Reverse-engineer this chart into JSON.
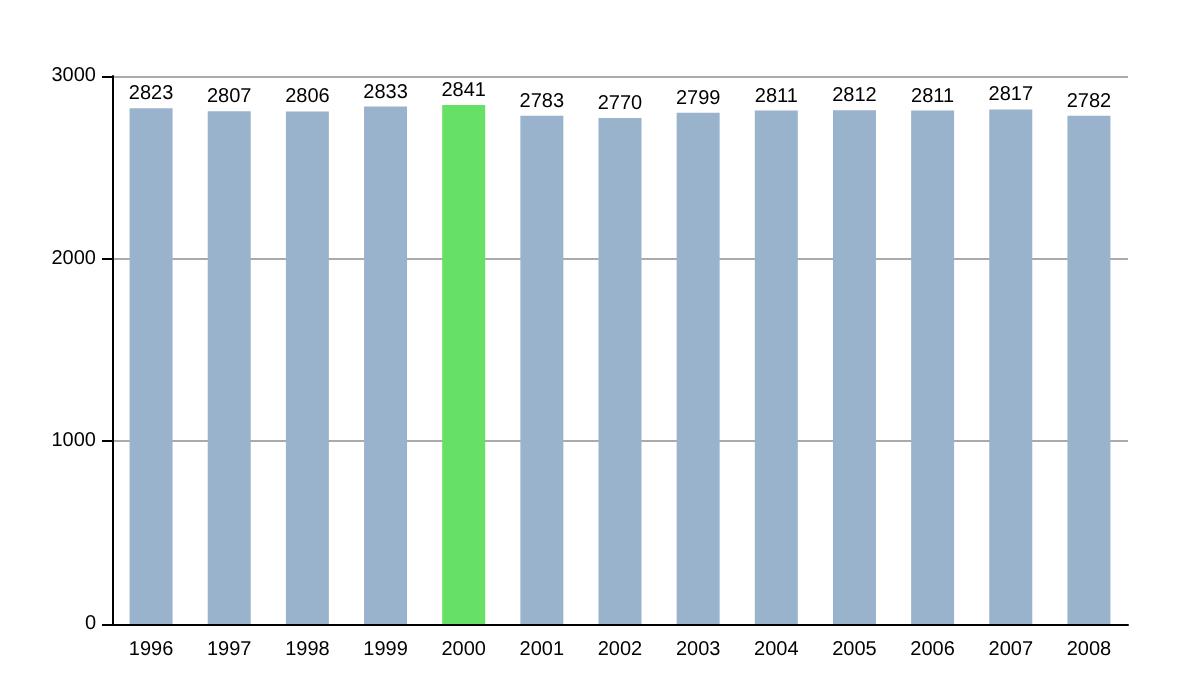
{
  "chart_data": {
    "type": "bar",
    "categories": [
      "1996",
      "1997",
      "1998",
      "1999",
      "2000",
      "2001",
      "2002",
      "2003",
      "2004",
      "2005",
      "2006",
      "2007",
      "2008"
    ],
    "values": [
      2823,
      2807,
      2806,
      2833,
      2841,
      2783,
      2770,
      2799,
      2811,
      2812,
      2811,
      2817,
      2782
    ],
    "colors": [
      "#9ab3cc",
      "#9ab3cc",
      "#9ab3cc",
      "#9ab3cc",
      "#66e066",
      "#9ab3cc",
      "#9ab3cc",
      "#9ab3cc",
      "#9ab3cc",
      "#9ab3cc",
      "#9ab3cc",
      "#9ab3cc",
      "#9ab3cc"
    ],
    "ylim": [
      0,
      3000
    ],
    "yticks": [
      0,
      1000,
      2000,
      3000
    ],
    "grid": "y",
    "data_labels": true
  }
}
